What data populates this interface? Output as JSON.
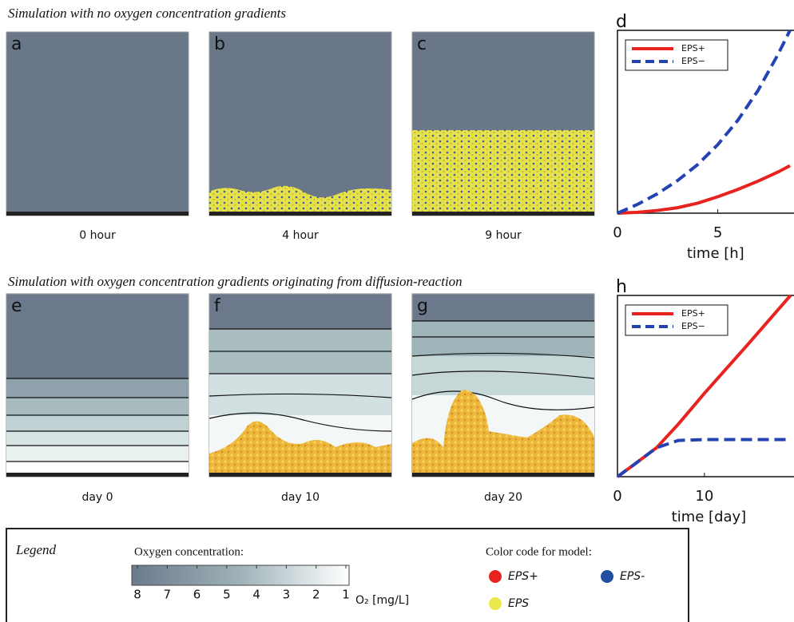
{
  "title_top": "Simulation with no oxygen concentration gradients",
  "title_bottom": "Simulation with oxygen concentration gradients originating from diffusion-reaction",
  "panels": [
    {
      "label": "a",
      "caption": "0 hour"
    },
    {
      "label": "b",
      "caption": "4 hour"
    },
    {
      "label": "c",
      "caption": "9 hour"
    },
    {
      "label": "e",
      "caption": "day 0"
    },
    {
      "label": "f",
      "caption": "day 10"
    },
    {
      "label": "g",
      "caption": "day 20"
    }
  ],
  "chart_data": [
    {
      "type": "line",
      "panel_label": "d",
      "xlabel": "time [h]",
      "x": [
        0,
        1,
        2,
        3,
        4,
        5,
        6,
        7,
        8,
        8.6
      ],
      "xlim": [
        0,
        8.8
      ],
      "xticks": [
        0,
        5
      ],
      "ylim": [
        0,
        1
      ],
      "legend": "upper left",
      "series": [
        {
          "name": "EPS+",
          "color": "#e8231f",
          "style": "solid",
          "values": [
            0,
            0.005,
            0.015,
            0.03,
            0.055,
            0.09,
            0.13,
            0.175,
            0.225,
            0.26
          ]
        },
        {
          "name": "EPS−",
          "color": "#2343b3",
          "style": "dashed",
          "values": [
            0,
            0.048,
            0.107,
            0.179,
            0.266,
            0.375,
            0.508,
            0.67,
            0.868,
            1.0
          ]
        }
      ]
    },
    {
      "type": "line",
      "panel_label": "h",
      "xlabel": "time [day]",
      "x": [
        0,
        2,
        4.5,
        7,
        10,
        15,
        19.9
      ],
      "xlim": [
        0,
        20.3
      ],
      "xticks": [
        0,
        10
      ],
      "ylim": [
        0,
        1
      ],
      "legend": "upper left",
      "series": [
        {
          "name": "EPS+",
          "color": "#e8231f",
          "style": "solid",
          "values": [
            0,
            0.07,
            0.16,
            0.29,
            0.46,
            0.73,
            1.0
          ]
        },
        {
          "name": "EPS−",
          "color": "#2343b3",
          "style": "dashed",
          "values": [
            0,
            0.07,
            0.16,
            0.2,
            0.205,
            0.205,
            0.205
          ]
        }
      ]
    }
  ],
  "legend": {
    "title": "Legend",
    "oxygen_title": "Oxygen concentration:",
    "colorbar": {
      "lim": [
        8,
        1
      ],
      "ticks": [
        8,
        7,
        6,
        5,
        4,
        3,
        2,
        1
      ],
      "unit": "O₂ [mg/L]"
    },
    "model_title": "Color code for model:",
    "items": [
      {
        "name": "EPS+",
        "color": "#e8231f"
      },
      {
        "name": "EPS-",
        "color": "#1f4f9e"
      },
      {
        "name": "EPS",
        "color": "#ece94f"
      }
    ]
  }
}
